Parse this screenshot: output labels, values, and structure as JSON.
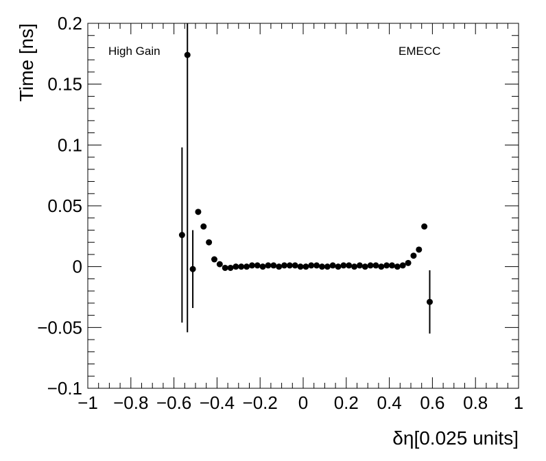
{
  "chart_data": {
    "type": "scatter",
    "xlabel": "δη[0.025 units]",
    "ylabel": "Time [ns]",
    "xlim": [
      -1,
      1
    ],
    "ylim": [
      -0.1,
      0.2
    ],
    "xticks": [
      -1,
      -0.8,
      -0.6,
      -0.4,
      -0.2,
      0,
      0.2,
      0.4,
      0.6,
      0.8,
      1
    ],
    "xtick_labels": [
      "−1",
      "−0.8",
      "−0.6",
      "−0.4",
      "−0.2",
      "0",
      "0.2",
      "0.4",
      "0.6",
      "0.8",
      "1"
    ],
    "yticks": [
      -0.1,
      -0.05,
      0,
      0.05,
      0.1,
      0.15,
      0.2
    ],
    "ytick_labels": [
      "−0.1",
      "−0.05",
      "0",
      "0.05",
      "0.1",
      "0.15",
      "0.2"
    ],
    "grid": false,
    "annotations": [
      "High Gain",
      "EMECC"
    ],
    "series": [
      {
        "points": [
          {
            "x": -0.5625,
            "y": 0.026,
            "err": 0.072
          },
          {
            "x": -0.5375,
            "y": 0.174,
            "err": 0.228
          },
          {
            "x": -0.5125,
            "y": -0.002,
            "err": 0.032
          },
          {
            "x": -0.4875,
            "y": 0.045,
            "err": 0
          },
          {
            "x": -0.4625,
            "y": 0.033,
            "err": 0
          },
          {
            "x": -0.4375,
            "y": 0.02,
            "err": 0
          },
          {
            "x": -0.4125,
            "y": 0.006,
            "err": 0
          },
          {
            "x": -0.3875,
            "y": 0.002,
            "err": 0
          },
          {
            "x": -0.3625,
            "y": -0.001,
            "err": 0
          },
          {
            "x": -0.3375,
            "y": -0.001,
            "err": 0
          },
          {
            "x": -0.3125,
            "y": 0.0,
            "err": 0
          },
          {
            "x": -0.2875,
            "y": 0.0,
            "err": 0
          },
          {
            "x": -0.2625,
            "y": 0.0,
            "err": 0
          },
          {
            "x": -0.2375,
            "y": 0.001,
            "err": 0
          },
          {
            "x": -0.2125,
            "y": 0.001,
            "err": 0
          },
          {
            "x": -0.1875,
            "y": 0.0,
            "err": 0
          },
          {
            "x": -0.1625,
            "y": 0.001,
            "err": 0
          },
          {
            "x": -0.1375,
            "y": 0.001,
            "err": 0
          },
          {
            "x": -0.1125,
            "y": 0.0,
            "err": 0
          },
          {
            "x": -0.0875,
            "y": 0.001,
            "err": 0
          },
          {
            "x": -0.0625,
            "y": 0.001,
            "err": 0
          },
          {
            "x": -0.0375,
            "y": 0.001,
            "err": 0
          },
          {
            "x": -0.0125,
            "y": 0.0,
            "err": 0
          },
          {
            "x": 0.0125,
            "y": 0.0,
            "err": 0
          },
          {
            "x": 0.0375,
            "y": 0.001,
            "err": 0
          },
          {
            "x": 0.0625,
            "y": 0.001,
            "err": 0
          },
          {
            "x": 0.0875,
            "y": 0.0,
            "err": 0
          },
          {
            "x": 0.1125,
            "y": 0.0,
            "err": 0
          },
          {
            "x": 0.1375,
            "y": 0.001,
            "err": 0
          },
          {
            "x": 0.1625,
            "y": 0.0,
            "err": 0
          },
          {
            "x": 0.1875,
            "y": 0.001,
            "err": 0
          },
          {
            "x": 0.2125,
            "y": 0.001,
            "err": 0
          },
          {
            "x": 0.2375,
            "y": 0.0,
            "err": 0
          },
          {
            "x": 0.2625,
            "y": 0.001,
            "err": 0
          },
          {
            "x": 0.2875,
            "y": 0.0,
            "err": 0
          },
          {
            "x": 0.3125,
            "y": 0.001,
            "err": 0
          },
          {
            "x": 0.3375,
            "y": 0.001,
            "err": 0
          },
          {
            "x": 0.3625,
            "y": 0.0,
            "err": 0
          },
          {
            "x": 0.3875,
            "y": 0.001,
            "err": 0
          },
          {
            "x": 0.4125,
            "y": 0.001,
            "err": 0
          },
          {
            "x": 0.4375,
            "y": 0.0,
            "err": 0
          },
          {
            "x": 0.4625,
            "y": 0.001,
            "err": 0
          },
          {
            "x": 0.4875,
            "y": 0.003,
            "err": 0
          },
          {
            "x": 0.5125,
            "y": 0.009,
            "err": 0
          },
          {
            "x": 0.5375,
            "y": 0.014,
            "err": 0
          },
          {
            "x": 0.5625,
            "y": 0.033,
            "err": 0
          },
          {
            "x": 0.5875,
            "y": -0.029,
            "err": 0.026
          }
        ]
      }
    ]
  }
}
